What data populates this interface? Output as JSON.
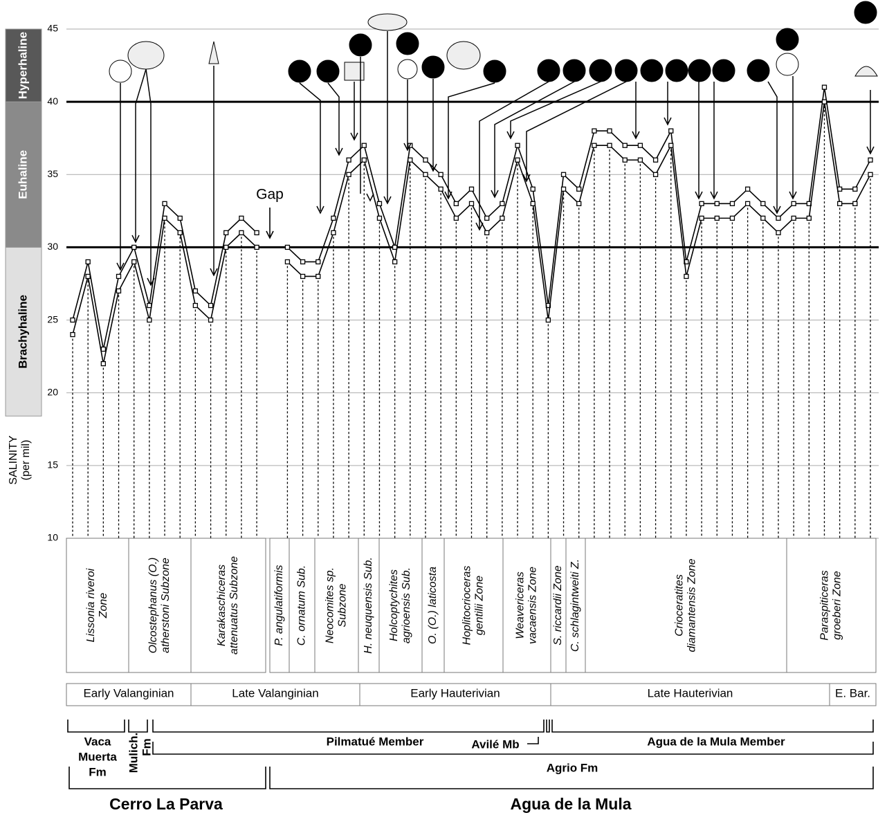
{
  "chart_data": {
    "type": "line",
    "y_label": [
      "SALINITY",
      "(per mil)"
    ],
    "ylim": [
      10,
      45
    ],
    "yticks": [
      10,
      15,
      20,
      25,
      30,
      35,
      40,
      45
    ],
    "grid": true,
    "bands": [
      {
        "label": "Brachyhaline",
        "from": 18.4,
        "to": 30,
        "color": "#e0e0e0",
        "text_color": "#000000"
      },
      {
        "label": "Euhaline",
        "from": 30,
        "to": 40,
        "color": "#8a8a8a",
        "text_color": "#ffffff"
      },
      {
        "label": "Hyperhaline",
        "from": 40,
        "to": 45,
        "color": "#585858",
        "text_color": "#ffffff"
      }
    ],
    "categories": [
      null,
      null,
      null,
      null,
      null,
      null,
      null,
      null,
      null,
      null,
      null,
      null,
      null,
      null,
      null,
      null,
      null,
      null,
      null,
      null,
      null,
      null,
      null,
      null,
      null,
      null,
      null,
      null,
      null,
      null,
      null,
      null,
      null,
      null,
      null,
      null,
      null,
      null,
      null,
      null,
      null,
      null,
      null,
      null,
      null,
      null,
      null,
      null,
      null,
      null,
      null,
      null,
      null
    ],
    "series": [
      {
        "color": "#000000",
        "values": [
          25,
          29,
          23,
          28,
          30,
          26,
          33,
          32,
          27,
          26,
          31,
          32,
          31,
          null,
          30,
          29,
          29,
          32,
          36,
          37,
          33,
          30,
          37,
          36,
          35,
          33,
          34,
          32,
          33,
          37,
          34,
          26,
          35,
          34,
          38,
          38,
          37,
          37,
          36,
          38,
          29,
          33,
          33,
          33,
          34,
          33,
          32,
          33,
          33,
          41,
          34,
          34,
          36
        ]
      },
      {
        "color": "#000000",
        "values": [
          24,
          28,
          22,
          27,
          29,
          25,
          32,
          31,
          26,
          25,
          30,
          31,
          30,
          null,
          29,
          28,
          28,
          31,
          35,
          36,
          32,
          29,
          36,
          35,
          34,
          32,
          33,
          31,
          32,
          36,
          33,
          25,
          34,
          33,
          37,
          37,
          36,
          36,
          35,
          37,
          28,
          32,
          32,
          32,
          33,
          32,
          31,
          32,
          32,
          40,
          33,
          33,
          35
        ]
      }
    ],
    "annotations": [
      "Gap"
    ]
  },
  "zones": [
    [
      "Lissonia riveroi",
      "Zone"
    ],
    [
      "Olcostephanus (O.)",
      "atherstoni Subzone"
    ],
    [
      "Karakaschiceras",
      "attenuatus Subzone"
    ],
    [
      "P. angulatiformis"
    ],
    [
      "C. ornatum Sub."
    ],
    [
      "Neocomites sp.",
      "Subzone"
    ],
    [
      "H. neuquensis Sub."
    ],
    [
      "Holcoptychites",
      "agrioensis Sub."
    ],
    [
      "O. (O.) laticosta"
    ],
    [
      "Hoplitocrioceras",
      "gentilii Zone"
    ],
    [
      "Weavericeras",
      "vacaensis Zone"
    ],
    [
      "S. riccardii Zone"
    ],
    [
      "C. schlagintweiti Z."
    ],
    [
      "Crioceratites",
      "diamantensis Zone"
    ],
    [
      "Paraspiticeras",
      "groeberi Zone"
    ]
  ],
  "stages": [
    "Early Valanginian",
    "Late Valanginian",
    "Early Hauterivian",
    "Late Hauterivian",
    "E. Bar."
  ],
  "units": {
    "vaca_muerta": [
      "Vaca",
      "Muerta",
      "Fm"
    ],
    "mulichinco": [
      "Mulich.",
      "Fm"
    ],
    "pilmatue": "Pilmatué Member",
    "avile": "Avilé Mb",
    "agua_member": "Agua de la Mula Member",
    "agrio": "Agrio Fm"
  },
  "localities": [
    "Cerro La Parva",
    "Agua de la Mula"
  ]
}
